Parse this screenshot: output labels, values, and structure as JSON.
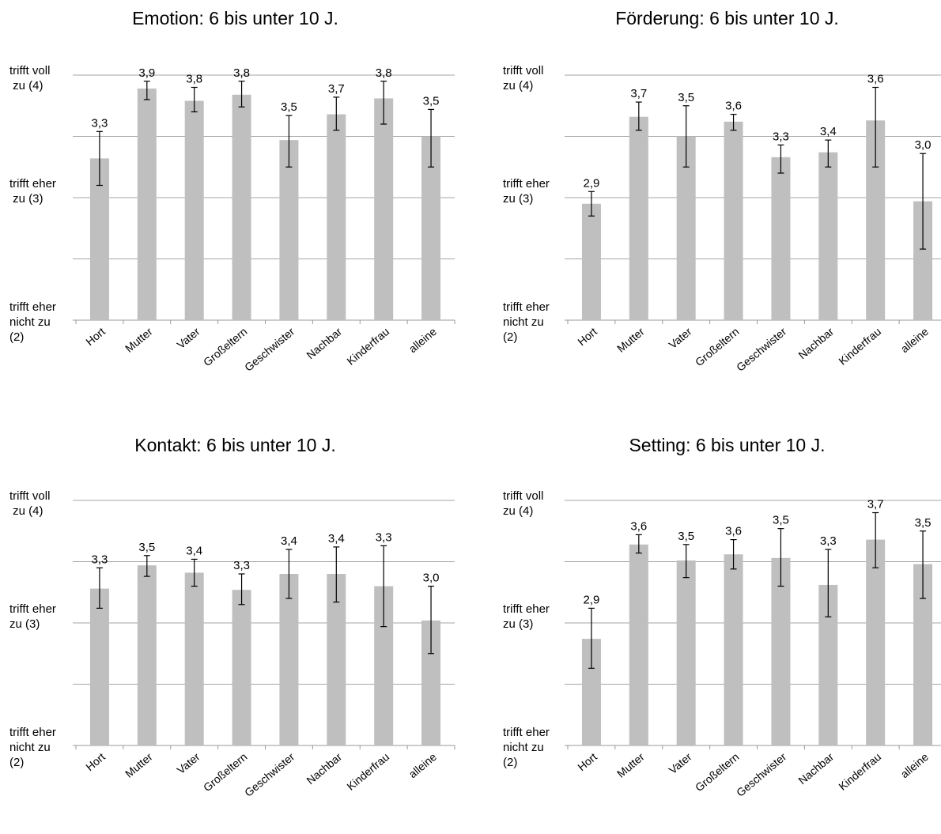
{
  "chart_data": [
    {
      "type": "bar",
      "title": "Emotion: 6 bis unter 10 J.",
      "categories": [
        "Hort",
        "Mutter",
        "Vater",
        "Großeltern",
        "Geschwister",
        "Nachbar",
        "Kinderfrau",
        "alleine"
      ],
      "values": [
        3.3,
        3.9,
        3.8,
        3.8,
        3.5,
        3.7,
        3.8,
        3.5
      ],
      "value_labels": [
        "3,3",
        "3,9",
        "3,8",
        "3,8",
        "3,5",
        "3,7",
        "3,8",
        "3,5"
      ],
      "bar_values": [
        3.32,
        3.89,
        3.79,
        3.84,
        3.47,
        3.68,
        3.81,
        3.5
      ],
      "error_bars": [
        [
          3.1,
          3.54
        ],
        [
          3.8,
          3.95
        ],
        [
          3.7,
          3.9
        ],
        [
          3.74,
          3.95
        ],
        [
          3.25,
          3.67
        ],
        [
          3.55,
          3.82
        ],
        [
          3.6,
          3.95
        ],
        [
          3.25,
          3.72
        ]
      ],
      "ylim": [
        2,
        4
      ],
      "yticks": [
        {
          "value": 4,
          "label": "trifft voll\n zu (4)"
        },
        {
          "value": 3,
          "label": "trifft eher\n zu (3)"
        },
        {
          "value": 2,
          "label": "trifft eher\nnicht zu\n(2)"
        }
      ],
      "grid": true,
      "bar_color": "#bfbfbf"
    },
    {
      "type": "bar",
      "title": "Förderung: 6 bis unter 10 J.",
      "categories": [
        "Hort",
        "Mutter",
        "Vater",
        "Großeltern",
        "Geschwister",
        "Nachbar",
        "Kinderfrau",
        "alleine"
      ],
      "values": [
        2.9,
        3.7,
        3.5,
        3.6,
        3.3,
        3.4,
        3.6,
        3.0
      ],
      "value_labels": [
        "2,9",
        "3,7",
        "3,5",
        "3,6",
        "3,3",
        "3,4",
        "3,6",
        "3,0"
      ],
      "bar_values": [
        2.95,
        3.66,
        3.5,
        3.62,
        3.33,
        3.37,
        3.63,
        2.97
      ],
      "error_bars": [
        [
          2.85,
          3.05
        ],
        [
          3.55,
          3.78
        ],
        [
          3.25,
          3.75
        ],
        [
          3.55,
          3.68
        ],
        [
          3.2,
          3.43
        ],
        [
          3.25,
          3.47
        ],
        [
          3.25,
          3.9
        ],
        [
          2.58,
          3.36
        ]
      ],
      "ylim": [
        2,
        4
      ],
      "yticks": [
        {
          "value": 4,
          "label": "trifft voll\nzu (4)"
        },
        {
          "value": 3,
          "label": "trifft eher\nzu (3)"
        },
        {
          "value": 2,
          "label": "trifft eher\nnicht zu\n(2)"
        }
      ],
      "grid": true,
      "bar_color": "#bfbfbf"
    },
    {
      "type": "bar",
      "title": "Kontakt: 6 bis unter 10 J.",
      "categories": [
        "Hort",
        "Mutter",
        "Vater",
        "Großeltern",
        "Geschwister",
        "Nachbar",
        "Kinderfrau",
        "alleine"
      ],
      "values": [
        3.3,
        3.5,
        3.4,
        3.3,
        3.4,
        3.4,
        3.3,
        3.0
      ],
      "value_labels": [
        "3,3",
        "3,5",
        "3,4",
        "3,3",
        "3,4",
        "3,4",
        "3,3",
        "3,0"
      ],
      "bar_values": [
        3.28,
        3.47,
        3.41,
        3.27,
        3.4,
        3.4,
        3.3,
        3.02
      ],
      "error_bars": [
        [
          3.12,
          3.45
        ],
        [
          3.38,
          3.55
        ],
        [
          3.3,
          3.52
        ],
        [
          3.15,
          3.4
        ],
        [
          3.2,
          3.6
        ],
        [
          3.17,
          3.62
        ],
        [
          2.97,
          3.63
        ],
        [
          2.75,
          3.3
        ]
      ],
      "ylim": [
        2,
        4
      ],
      "yticks": [
        {
          "value": 4,
          "label": "trifft voll\n zu (4)"
        },
        {
          "value": 3,
          "label": "trifft eher\nzu (3)"
        },
        {
          "value": 2,
          "label": "trifft eher\nnicht zu\n(2)"
        }
      ],
      "grid": true,
      "bar_color": "#bfbfbf"
    },
    {
      "type": "bar",
      "title": "Setting: 6 bis unter 10 J.",
      "categories": [
        "Hort",
        "Mutter",
        "Vater",
        "Großeltern",
        "Geschwister",
        "Nachbar",
        "Kinderfrau",
        "alleine"
      ],
      "values": [
        2.9,
        3.6,
        3.5,
        3.6,
        3.5,
        3.3,
        3.7,
        3.5
      ],
      "value_labels": [
        "2,9",
        "3,6",
        "3,5",
        "3,6",
        "3,5",
        "3,3",
        "3,7",
        "3,5"
      ],
      "bar_values": [
        2.87,
        3.64,
        3.51,
        3.56,
        3.53,
        3.31,
        3.68,
        3.48
      ],
      "error_bars": [
        [
          2.63,
          3.12
        ],
        [
          3.57,
          3.72
        ],
        [
          3.37,
          3.64
        ],
        [
          3.44,
          3.68
        ],
        [
          3.3,
          3.77
        ],
        [
          3.05,
          3.6
        ],
        [
          3.45,
          3.9
        ],
        [
          3.2,
          3.75
        ]
      ],
      "ylim": [
        2,
        4
      ],
      "yticks": [
        {
          "value": 4,
          "label": "trifft voll\nzu (4)"
        },
        {
          "value": 3,
          "label": "trifft eher\nzu (3)"
        },
        {
          "value": 2,
          "label": "trifft eher\nnicht zu\n(2)"
        }
      ],
      "grid": true,
      "bar_color": "#bfbfbf"
    }
  ]
}
